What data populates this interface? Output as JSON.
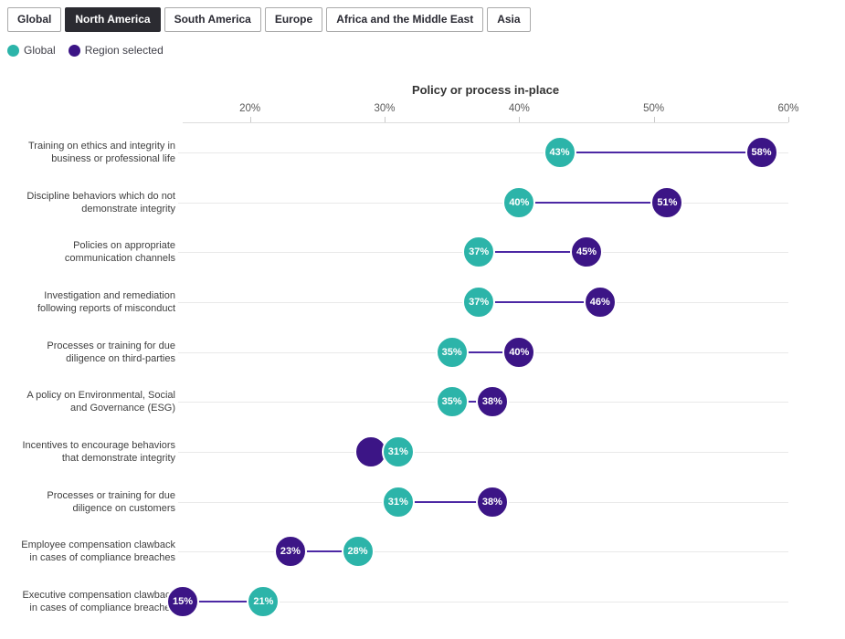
{
  "tabs": {
    "items": [
      {
        "label": "Global",
        "selected": false
      },
      {
        "label": "North America",
        "selected": true
      },
      {
        "label": "South America",
        "selected": false
      },
      {
        "label": "Europe",
        "selected": false
      },
      {
        "label": "Africa and the Middle East",
        "selected": false
      },
      {
        "label": "Asia",
        "selected": false
      }
    ]
  },
  "legend": {
    "items": [
      {
        "label": "Global",
        "color": "#2cb4a9"
      },
      {
        "label": "Region selected",
        "color": "#3c1586"
      }
    ]
  },
  "colors": {
    "global_series": "#2cb4a9",
    "region_series": "#3c1586",
    "connector": "#4c28a4",
    "active_tab_bg": "#2b2b31"
  },
  "chart_data": {
    "type": "dumbbell",
    "title": "Policy or process in-place",
    "xlabel": "Policy or process in-place",
    "value_suffix": "%",
    "x_axis": {
      "ticks": [
        20,
        30,
        40,
        50,
        60
      ],
      "tick_suffix": "%",
      "range": [
        15,
        60
      ],
      "grid": "horizontal-only",
      "position": "top"
    },
    "series": [
      {
        "name": "Global",
        "color": "#2cb4a9"
      },
      {
        "name": "Region selected",
        "color": "#3c1586"
      }
    ],
    "rows": [
      {
        "lines": [
          "Training on ethics and integrity in",
          "business or professional life"
        ],
        "global": 43,
        "region": 58,
        "region_label_hidden": false
      },
      {
        "lines": [
          "Discipline behaviors which do not",
          "demonstrate integrity"
        ],
        "global": 40,
        "region": 51,
        "region_label_hidden": false
      },
      {
        "lines": [
          "Policies on appropriate",
          "communication channels"
        ],
        "global": 37,
        "region": 45,
        "region_label_hidden": false
      },
      {
        "lines": [
          "Investigation and remediation",
          "following reports of misconduct"
        ],
        "global": 37,
        "region": 46,
        "region_label_hidden": false
      },
      {
        "lines": [
          "Processes or training for due",
          "diligence on third-parties"
        ],
        "global": 35,
        "region": 40,
        "region_label_hidden": false
      },
      {
        "lines": [
          "A policy on Environmental, Social",
          "and Governance (ESG)"
        ],
        "global": 35,
        "region": 38,
        "region_label_hidden": false
      },
      {
        "lines": [
          "Incentives to encourage behaviors",
          "that demonstrate integrity"
        ],
        "global": 31,
        "region": 29,
        "region_label_hidden": true
      },
      {
        "lines": [
          "Processes or training for due",
          "diligence on customers"
        ],
        "global": 31,
        "region": 38,
        "region_label_hidden": false
      },
      {
        "lines": [
          "Employee compensation clawback",
          "in cases of compliance breaches"
        ],
        "global": 28,
        "region": 23,
        "region_label_hidden": false
      },
      {
        "lines": [
          "Executive compensation clawback",
          "in cases of compliance breaches"
        ],
        "global": 21,
        "region": 15,
        "region_label_hidden": false
      }
    ]
  }
}
